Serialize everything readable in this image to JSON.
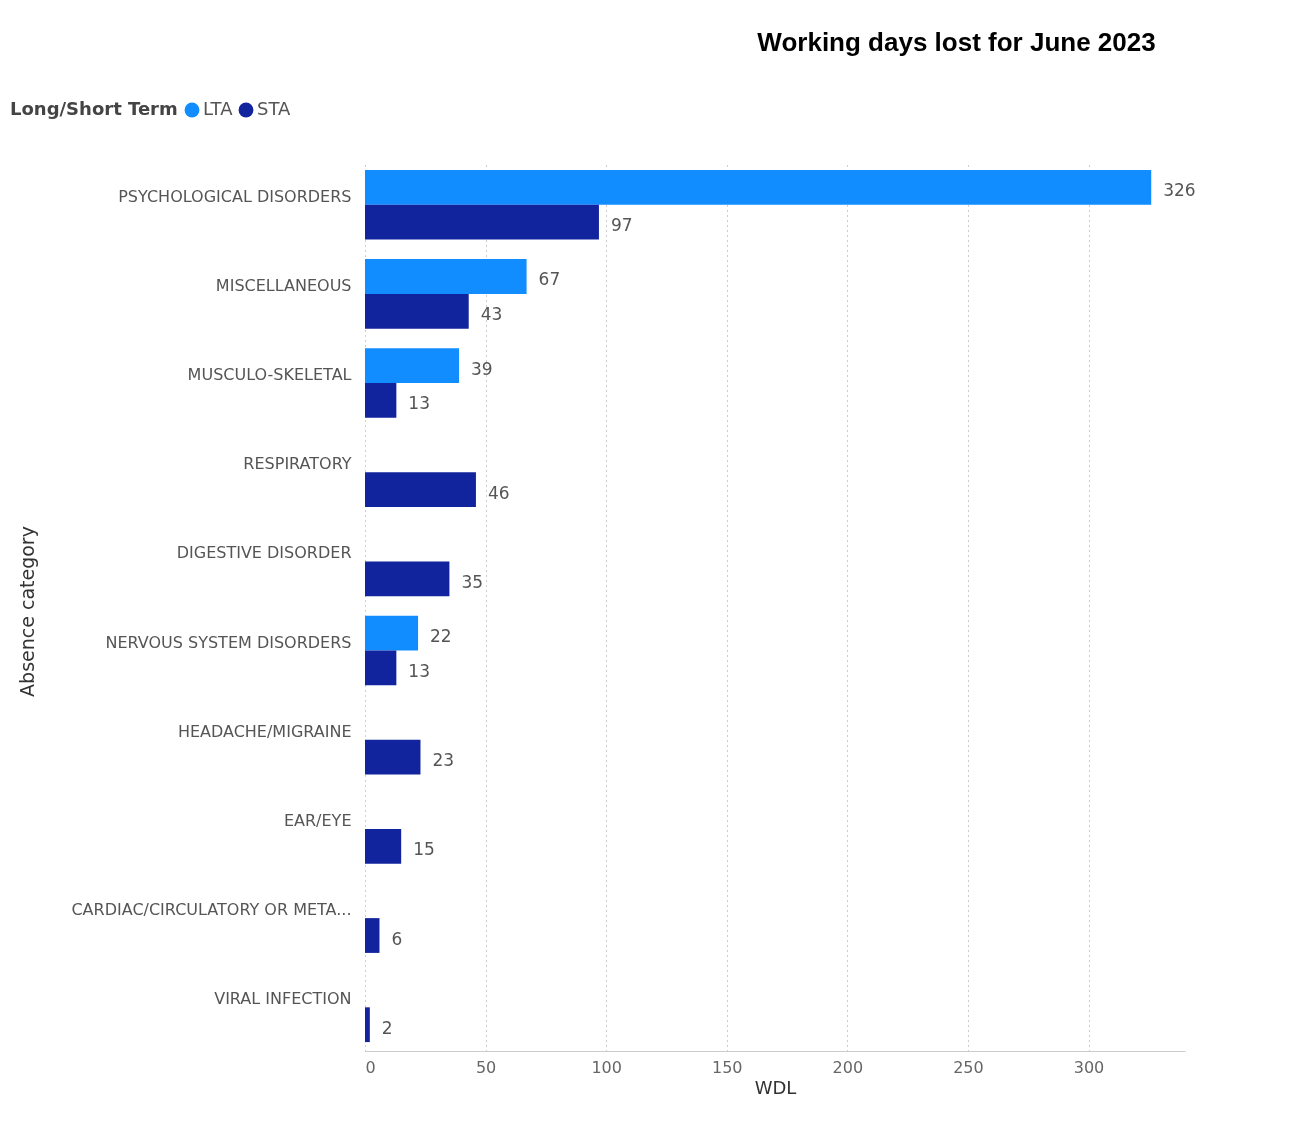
{
  "chart_data": {
    "type": "bar",
    "orientation": "horizontal",
    "title": "Working days lost for June 2023",
    "xlabel": "WDL",
    "ylabel": "Absence category",
    "legend_title": "Long/Short Term",
    "categories": [
      "PSYCHOLOGICAL DISORDERS",
      "MISCELLANEOUS",
      "MUSCULO-SKELETAL",
      "RESPIRATORY",
      "DIGESTIVE DISORDER",
      "NERVOUS SYSTEM DISORDERS",
      "HEADACHE/MIGRAINE",
      "EAR/EYE",
      "CARDIAC/CIRCULATORY OR META...",
      "VIRAL INFECTION"
    ],
    "series": [
      {
        "name": "LTA",
        "color": "#118dff",
        "values": [
          326,
          67,
          39,
          null,
          null,
          22,
          null,
          null,
          null,
          null
        ]
      },
      {
        "name": "STA",
        "color": "#12239e",
        "values": [
          97,
          43,
          13,
          46,
          35,
          13,
          23,
          15,
          6,
          2
        ]
      }
    ],
    "xlim": [
      0,
      340
    ],
    "xticks": [
      0,
      50,
      100,
      150,
      200,
      250,
      300
    ],
    "grid": "x",
    "legend": "top left",
    "data_labels": true
  }
}
